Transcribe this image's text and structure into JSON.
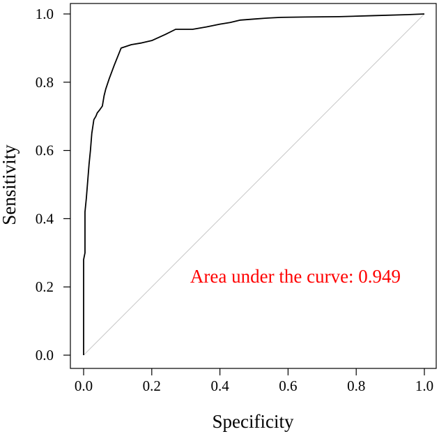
{
  "chart_data": {
    "type": "line",
    "title": "",
    "xlabel": "Specificity",
    "ylabel": "Sensitivity",
    "xlim": [
      0,
      1
    ],
    "ylim": [
      0,
      1
    ],
    "xticks": [
      "0.0",
      "0.2",
      "0.4",
      "0.6",
      "0.8",
      "1.0"
    ],
    "yticks": [
      "0.0",
      "0.2",
      "0.4",
      "0.6",
      "0.8",
      "1.0"
    ],
    "grid": false,
    "legend": "none",
    "annotation": {
      "text": "Area under the curve: 0.949",
      "color": "#ff0000"
    },
    "series": [
      {
        "color": "#000000",
        "x": [
          0.0,
          0.0,
          0.004,
          0.004,
          0.008,
          0.012,
          0.016,
          0.02,
          0.024,
          0.03,
          0.036,
          0.04,
          0.048,
          0.055,
          0.06,
          0.065,
          0.075,
          0.09,
          0.11,
          0.14,
          0.17,
          0.2,
          0.24,
          0.27,
          0.3,
          0.32,
          0.36,
          0.4,
          0.43,
          0.46,
          0.5,
          0.54,
          0.58,
          0.65,
          0.75,
          0.85,
          0.95,
          1.0
        ],
        "y": [
          0.0,
          0.28,
          0.3,
          0.42,
          0.46,
          0.51,
          0.56,
          0.6,
          0.65,
          0.69,
          0.7,
          0.71,
          0.72,
          0.73,
          0.76,
          0.78,
          0.81,
          0.85,
          0.9,
          0.91,
          0.915,
          0.922,
          0.94,
          0.955,
          0.955,
          0.955,
          0.962,
          0.97,
          0.975,
          0.982,
          0.985,
          0.988,
          0.99,
          0.991,
          0.992,
          0.995,
          0.998,
          1.0
        ]
      },
      {
        "color": "#c8c8c8",
        "x": [
          0,
          1
        ],
        "y": [
          0,
          1
        ]
      }
    ]
  }
}
